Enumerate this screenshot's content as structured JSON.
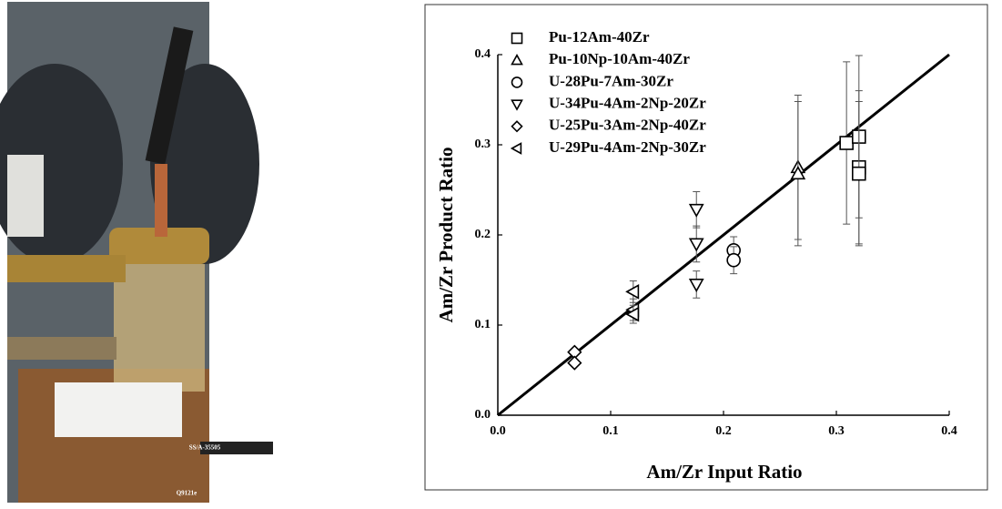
{
  "photo": {
    "stamp": "SS/A-35505",
    "code": "Q9121e"
  },
  "chart_data": {
    "type": "scatter",
    "x_label": "Am/Zr Input Ratio",
    "y_label": "Am/Zr Product Ratio",
    "xlim": [
      0,
      0.4
    ],
    "ylim": [
      0,
      0.4
    ],
    "xticks": [
      {
        "value": 0,
        "label": "0.0"
      },
      {
        "value": 0.1,
        "label": "0.1"
      },
      {
        "value": 0.2,
        "label": "0.2"
      },
      {
        "value": 0.3,
        "label": "0.3"
      },
      {
        "value": 0.4,
        "label": "0.4"
      }
    ],
    "yticks": [
      {
        "value": 0,
        "label": "0.0"
      },
      {
        "value": 0.1,
        "label": "0.1"
      },
      {
        "value": 0.2,
        "label": "0.2"
      },
      {
        "value": 0.3,
        "label": "0.3"
      },
      {
        "value": 0.4,
        "label": "0.4"
      }
    ],
    "legend": "upper left",
    "reference_line": {
      "x": [
        0,
        0.4
      ],
      "values": [
        0,
        0.4
      ],
      "color": "#000000"
    },
    "series": [
      {
        "name": "Pu-12Am-40Zr",
        "marker": "square",
        "color": "#000000",
        "x": [
          0.309,
          0.32,
          0.32,
          0.32
        ],
        "values": [
          0.302,
          0.309,
          0.275,
          0.268
        ],
        "errors": [
          0.09,
          0.09,
          0.085,
          0.08
        ]
      },
      {
        "name": "Pu-10Np-10Am-40Zr",
        "marker": "triangle-up",
        "color": "#000000",
        "x": [
          0.266,
          0.266
        ],
        "values": [
          0.275,
          0.268
        ],
        "errors": [
          0.08,
          0.08
        ]
      },
      {
        "name": "U-28Pu-7Am-30Zr",
        "marker": "circle",
        "color": "#000000",
        "x": [
          0.209,
          0.209
        ],
        "values": [
          0.183,
          0.172
        ],
        "errors": [
          0.015,
          0.015
        ]
      },
      {
        "name": "U-34Pu-4Am-2Np-20Zr",
        "marker": "triangle-down",
        "color": "#000000",
        "x": [
          0.176,
          0.176,
          0.176
        ],
        "values": [
          0.228,
          0.19,
          0.145
        ],
        "errors": [
          0.02,
          0.02,
          0.015
        ]
      },
      {
        "name": "U-25Pu-3Am-2Np-40Zr",
        "marker": "diamond",
        "color": "#000000",
        "x": [
          0.068,
          0.068
        ],
        "values": [
          0.07,
          0.058
        ],
        "errors": [
          0,
          0
        ]
      },
      {
        "name": "U-29Pu-4Am-2Np-30Zr",
        "marker": "triangle-left",
        "color": "#000000",
        "x": [
          0.12,
          0.12,
          0.12
        ],
        "values": [
          0.137,
          0.117,
          0.112
        ],
        "errors": [
          0.012,
          0.012,
          0.01
        ]
      }
    ]
  }
}
